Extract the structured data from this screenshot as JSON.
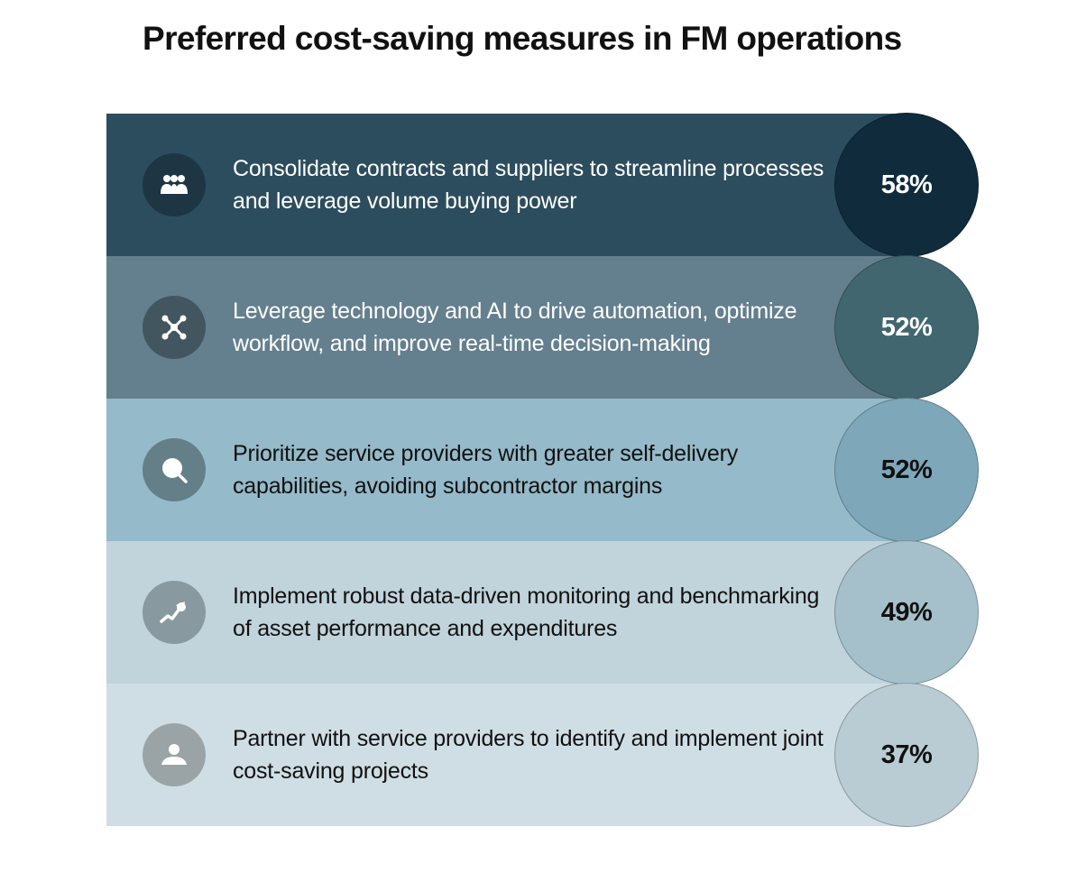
{
  "title": "Preferred cost-saving measures in FM operations",
  "chart_data": {
    "type": "bar",
    "title": "Preferred cost-saving measures in FM operations",
    "unit": "%",
    "categories": [
      "Consolidate contracts and suppliers to streamline processes and leverage volume buying power",
      "Leverage technology and AI to drive automation, optimize workflow, and improve real-time decision-making",
      "Prioritize service providers with greater self-delivery capabilities, avoiding subcontractor margins",
      "Implement robust data-driven monitoring and benchmarking of asset performance and expenditures",
      "Partner with service providers to identify and implement joint cost-saving projects"
    ],
    "values": [
      58,
      52,
      52,
      49,
      37
    ],
    "value_labels": [
      "58%",
      "52%",
      "52%",
      "49%",
      "37%"
    ]
  },
  "rows": [
    {
      "label": "Consolidate contracts and suppliers to streamline processes and leverage volume buying power",
      "value": "58%",
      "icon": "people-group-icon",
      "band_color": "#2c4d5d",
      "circle_color": "#0f2b3c",
      "icon_bg": "#1e3644",
      "icon_color": "#ffffff",
      "text_color": "#ffffff",
      "value_color": "#ffffff"
    },
    {
      "label": "Leverage technology and AI to drive automation, optimize workflow, and improve real-time decision-making",
      "value": "52%",
      "icon": "network-nodes-icon",
      "band_color": "#647f8e",
      "circle_color": "#416670",
      "icon_bg": "#41565f",
      "icon_color": "#ffffff",
      "text_color": "#ffffff",
      "value_color": "#ffffff"
    },
    {
      "label": "Prioritize service providers with greater self-delivery capabilities, avoiding subcontractor margins",
      "value": "52%",
      "icon": "magnifier-icon",
      "band_color": "#95bac9",
      "circle_color": "#7ea7ba",
      "icon_bg": "#647f88",
      "icon_color": "#ffffff",
      "text_color": "#111111",
      "value_color": "#111111"
    },
    {
      "label": "Implement robust data-driven monitoring and benchmarking of asset performance and expenditures",
      "value": "49%",
      "icon": "trend-chart-icon",
      "band_color": "#c1d3db",
      "circle_color": "#a5c0cb",
      "icon_bg": "#88999f",
      "icon_color": "#ffffff",
      "text_color": "#111111",
      "value_color": "#111111"
    },
    {
      "label": "Partner with service providers to identify and implement joint cost-saving projects",
      "value": "37%",
      "icon": "partner-person-icon",
      "band_color": "#cfdee4",
      "circle_color": "#b9ccd3",
      "icon_bg": "#9aa4a7",
      "icon_color": "#ffffff",
      "text_color": "#111111",
      "value_color": "#111111"
    }
  ]
}
